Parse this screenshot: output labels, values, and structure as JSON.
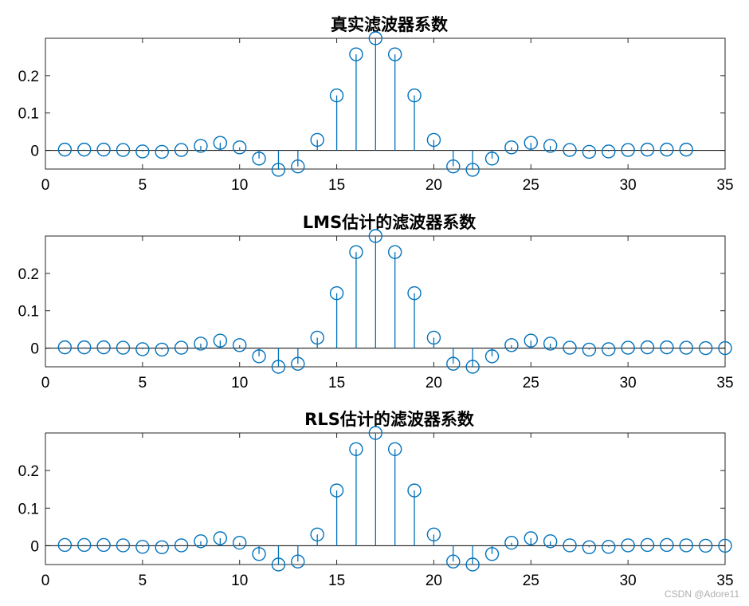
{
  "figure": {
    "watermark": "CSDN @Adore11"
  },
  "chart_data": [
    {
      "type": "stem",
      "title": "真实滤波器系数",
      "xlim": [
        0,
        35
      ],
      "ylim": [
        -0.05,
        0.3
      ],
      "xticks": [
        0,
        5,
        10,
        15,
        20,
        25,
        30,
        35
      ],
      "yticks": [
        0,
        0.1,
        0.2
      ],
      "ytick_labels": [
        "0",
        "0.1",
        "0.2"
      ],
      "color": "#0072BD",
      "x": [
        1,
        2,
        3,
        4,
        5,
        6,
        7,
        8,
        9,
        10,
        11,
        12,
        13,
        14,
        15,
        16,
        17,
        18,
        19,
        20,
        21,
        22,
        23,
        24,
        25,
        26,
        27,
        28,
        29,
        30,
        31,
        32,
        33
      ],
      "y": [
        0.002,
        0.002,
        0.002,
        0.001,
        -0.003,
        -0.004,
        0.001,
        0.012,
        0.02,
        0.008,
        -0.022,
        -0.052,
        -0.043,
        0.028,
        0.147,
        0.257,
        0.3,
        0.257,
        0.147,
        0.028,
        -0.043,
        -0.052,
        -0.022,
        0.008,
        0.02,
        0.012,
        0.001,
        -0.004,
        -0.003,
        0.001,
        0.002,
        0.002,
        0.002
      ]
    },
    {
      "type": "stem",
      "title": "LMS估计的滤波器系数",
      "xlim": [
        0,
        35
      ],
      "ylim": [
        -0.05,
        0.3
      ],
      "xticks": [
        0,
        5,
        10,
        15,
        20,
        25,
        30,
        35
      ],
      "yticks": [
        0,
        0.1,
        0.2
      ],
      "ytick_labels": [
        "0",
        "0.1",
        "0.2"
      ],
      "color": "#0072BD",
      "x": [
        1,
        2,
        3,
        4,
        5,
        6,
        7,
        8,
        9,
        10,
        11,
        12,
        13,
        14,
        15,
        16,
        17,
        18,
        19,
        20,
        21,
        22,
        23,
        24,
        25,
        26,
        27,
        28,
        29,
        30,
        31,
        32,
        33,
        34,
        35
      ],
      "y": [
        0.002,
        0.002,
        0.002,
        0.001,
        -0.003,
        -0.004,
        0.001,
        0.012,
        0.02,
        0.008,
        -0.022,
        -0.05,
        -0.042,
        0.028,
        0.147,
        0.257,
        0.3,
        0.257,
        0.147,
        0.028,
        -0.042,
        -0.05,
        -0.022,
        0.008,
        0.02,
        0.012,
        0.001,
        -0.004,
        -0.003,
        0.001,
        0.002,
        0.002,
        0.001,
        0.0,
        0.0
      ]
    },
    {
      "type": "stem",
      "title": "RLS估计的滤波器系数",
      "xlim": [
        0,
        35
      ],
      "ylim": [
        -0.05,
        0.3
      ],
      "xticks": [
        0,
        5,
        10,
        15,
        20,
        25,
        30,
        35
      ],
      "yticks": [
        0,
        0.1,
        0.2
      ],
      "ytick_labels": [
        "0",
        "0.1",
        "0.2"
      ],
      "color": "#0072BD",
      "x": [
        1,
        2,
        3,
        4,
        5,
        6,
        7,
        8,
        9,
        10,
        11,
        12,
        13,
        14,
        15,
        16,
        17,
        18,
        19,
        20,
        21,
        22,
        23,
        24,
        25,
        26,
        27,
        28,
        29,
        30,
        31,
        32,
        33,
        34,
        35
      ],
      "y": [
        0.002,
        0.002,
        0.002,
        0.001,
        -0.003,
        -0.004,
        0.001,
        0.012,
        0.02,
        0.008,
        -0.022,
        -0.05,
        -0.042,
        0.03,
        0.147,
        0.257,
        0.3,
        0.257,
        0.147,
        0.03,
        -0.042,
        -0.05,
        -0.022,
        0.008,
        0.02,
        0.012,
        0.001,
        -0.004,
        -0.003,
        0.001,
        0.002,
        0.002,
        0.001,
        0.0,
        0.0
      ]
    }
  ]
}
